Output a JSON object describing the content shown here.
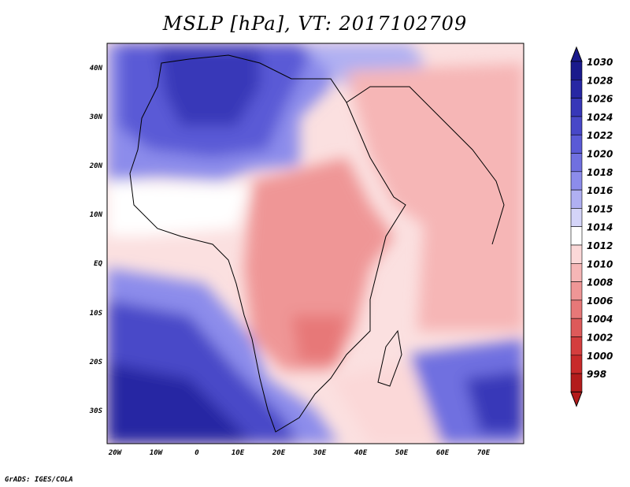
{
  "title": "MSLP [hPa], VT: 2017102709",
  "credit": "GrADS: IGES/COLA",
  "map": {
    "type": "filled-contour-map",
    "variable": "MSLP",
    "units": "hPa",
    "lon_range": [
      -25,
      80
    ],
    "lat_range": [
      -37,
      45
    ],
    "lon_ticks": [
      "20W",
      "10W",
      "0",
      "10E",
      "20E",
      "30E",
      "40E",
      "50E",
      "60E",
      "70E"
    ],
    "lat_ticks": [
      "40N",
      "30N",
      "20N",
      "10N",
      "EQ",
      "10S",
      "20S",
      "30S"
    ]
  },
  "colorbar": {
    "levels": [
      "1030",
      "1028",
      "1026",
      "1024",
      "1022",
      "1020",
      "1018",
      "1016",
      "1015",
      "1014",
      "1012",
      "1010",
      "1008",
      "1006",
      "1004",
      "1002",
      "1000",
      "998"
    ],
    "colors": [
      "#1a1a8c",
      "#2727a3",
      "#3737b8",
      "#4848c8",
      "#5a5ad6",
      "#7070e0",
      "#8c8ceb",
      "#b0b0f2",
      "#d4d4f8",
      "#ffffff",
      "#fbd8d8",
      "#f6b6b6",
      "#ef9696",
      "#e77878",
      "#dd5a5a",
      "#d43e3e",
      "#c82a2a",
      "#b31c1c"
    ]
  }
}
